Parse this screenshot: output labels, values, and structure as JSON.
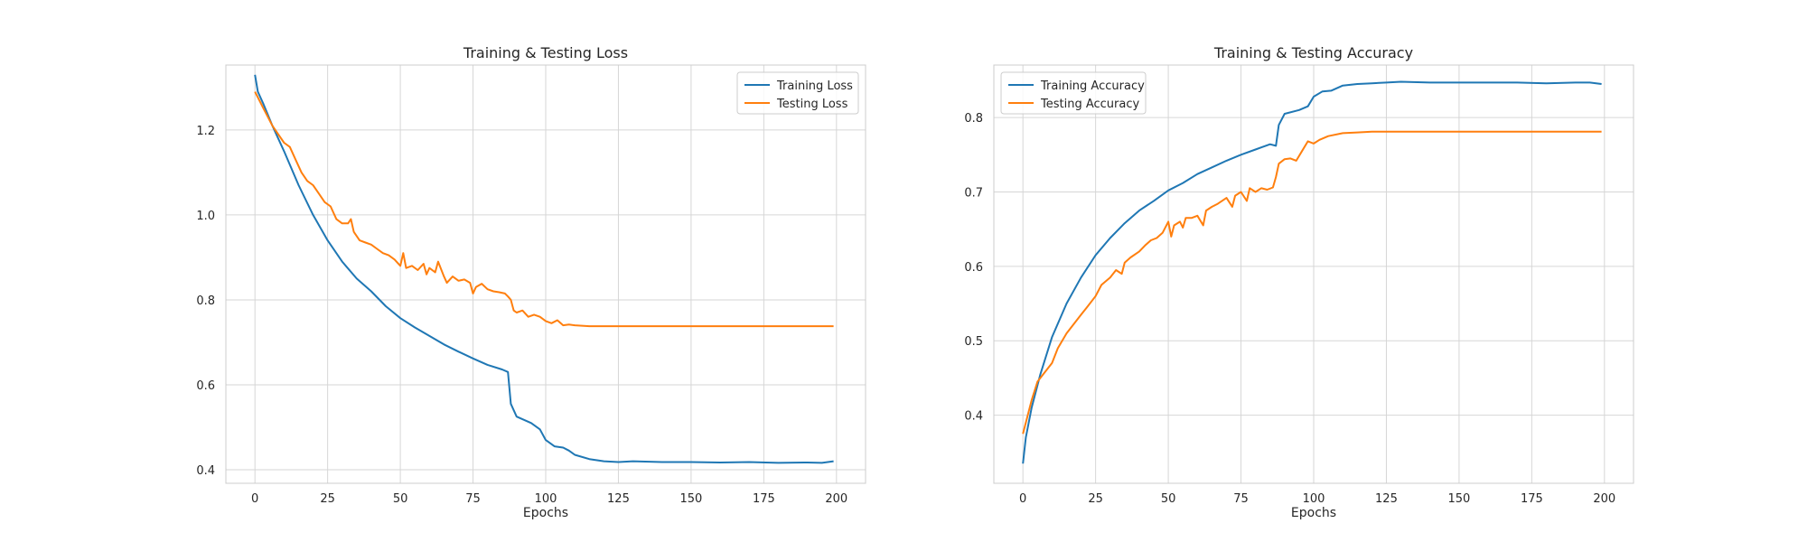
{
  "chart_data": [
    {
      "type": "line",
      "title": "Training & Testing Loss",
      "xlabel": "Epochs",
      "ylabel": "",
      "xlim": [
        -10,
        210
      ],
      "ylim": [
        0.368,
        1.353
      ],
      "xticks": [
        0,
        25,
        50,
        75,
        100,
        125,
        150,
        175,
        200
      ],
      "yticks": [
        0.4,
        0.6,
        0.8,
        1.0,
        1.2
      ],
      "ytick_labels": [
        "0.4",
        "0.6",
        "0.8",
        "1.0",
        "1.2"
      ],
      "grid": true,
      "legend_position": "top-right",
      "series": [
        {
          "name": "Training Loss",
          "color": "#1f77b4",
          "points": [
            [
              0,
              1.33
            ],
            [
              1,
              1.29
            ],
            [
              3,
              1.26
            ],
            [
              6,
              1.21
            ],
            [
              10,
              1.15
            ],
            [
              15,
              1.07
            ],
            [
              20,
              1.0
            ],
            [
              25,
              0.94
            ],
            [
              30,
              0.89
            ],
            [
              35,
              0.85
            ],
            [
              40,
              0.82
            ],
            [
              45,
              0.785
            ],
            [
              50,
              0.757
            ],
            [
              55,
              0.735
            ],
            [
              60,
              0.715
            ],
            [
              65,
              0.695
            ],
            [
              70,
              0.678
            ],
            [
              75,
              0.662
            ],
            [
              80,
              0.647
            ],
            [
              85,
              0.636
            ],
            [
              87,
              0.63
            ],
            [
              88,
              0.555
            ],
            [
              90,
              0.525
            ],
            [
              95,
              0.51
            ],
            [
              98,
              0.495
            ],
            [
              100,
              0.47
            ],
            [
              103,
              0.455
            ],
            [
              106,
              0.452
            ],
            [
              108,
              0.445
            ],
            [
              110,
              0.435
            ],
            [
              115,
              0.425
            ],
            [
              120,
              0.42
            ],
            [
              125,
              0.418
            ],
            [
              130,
              0.42
            ],
            [
              140,
              0.418
            ],
            [
              150,
              0.418
            ],
            [
              160,
              0.417
            ],
            [
              170,
              0.418
            ],
            [
              180,
              0.416
            ],
            [
              190,
              0.417
            ],
            [
              195,
              0.416
            ],
            [
              199,
              0.42
            ]
          ]
        },
        {
          "name": "Testing Loss",
          "color": "#ff7f0e",
          "points": [
            [
              0,
              1.29
            ],
            [
              3,
              1.25
            ],
            [
              6,
              1.21
            ],
            [
              8,
              1.19
            ],
            [
              10,
              1.17
            ],
            [
              12,
              1.16
            ],
            [
              14,
              1.13
            ],
            [
              16,
              1.1
            ],
            [
              18,
              1.08
            ],
            [
              20,
              1.07
            ],
            [
              22,
              1.05
            ],
            [
              24,
              1.03
            ],
            [
              26,
              1.02
            ],
            [
              28,
              0.99
            ],
            [
              30,
              0.98
            ],
            [
              32,
              0.98
            ],
            [
              33,
              0.99
            ],
            [
              34,
              0.96
            ],
            [
              36,
              0.94
            ],
            [
              38,
              0.935
            ],
            [
              40,
              0.93
            ],
            [
              42,
              0.92
            ],
            [
              44,
              0.91
            ],
            [
              46,
              0.905
            ],
            [
              48,
              0.895
            ],
            [
              50,
              0.88
            ],
            [
              51,
              0.91
            ],
            [
              52,
              0.875
            ],
            [
              54,
              0.88
            ],
            [
              56,
              0.87
            ],
            [
              58,
              0.885
            ],
            [
              59,
              0.86
            ],
            [
              60,
              0.875
            ],
            [
              62,
              0.865
            ],
            [
              63,
              0.89
            ],
            [
              65,
              0.855
            ],
            [
              66,
              0.84
            ],
            [
              68,
              0.855
            ],
            [
              70,
              0.845
            ],
            [
              72,
              0.848
            ],
            [
              74,
              0.84
            ],
            [
              75,
              0.815
            ],
            [
              76,
              0.83
            ],
            [
              78,
              0.838
            ],
            [
              80,
              0.825
            ],
            [
              82,
              0.82
            ],
            [
              84,
              0.818
            ],
            [
              86,
              0.815
            ],
            [
              87,
              0.808
            ],
            [
              88,
              0.8
            ],
            [
              89,
              0.775
            ],
            [
              90,
              0.77
            ],
            [
              92,
              0.775
            ],
            [
              94,
              0.76
            ],
            [
              96,
              0.765
            ],
            [
              98,
              0.76
            ],
            [
              100,
              0.75
            ],
            [
              102,
              0.745
            ],
            [
              104,
              0.752
            ],
            [
              106,
              0.74
            ],
            [
              108,
              0.742
            ],
            [
              110,
              0.74
            ],
            [
              115,
              0.738
            ],
            [
              120,
              0.738
            ],
            [
              130,
              0.738
            ],
            [
              140,
              0.738
            ],
            [
              150,
              0.738
            ],
            [
              160,
              0.738
            ],
            [
              170,
              0.738
            ],
            [
              180,
              0.738
            ],
            [
              190,
              0.738
            ],
            [
              199,
              0.738
            ]
          ]
        }
      ]
    },
    {
      "type": "line",
      "title": "Training & Testing Accuracy",
      "xlabel": "Epochs",
      "ylabel": "",
      "xlim": [
        -10,
        210
      ],
      "ylim": [
        0.3085,
        0.8705
      ],
      "xticks": [
        0,
        25,
        50,
        75,
        100,
        125,
        150,
        175,
        200
      ],
      "yticks": [
        0.4,
        0.5,
        0.6,
        0.7,
        0.8
      ],
      "ytick_labels": [
        "0.4",
        "0.5",
        "0.6",
        "0.7",
        "0.8"
      ],
      "grid": true,
      "legend_position": "top-left",
      "series": [
        {
          "name": "Training Accuracy",
          "color": "#1f77b4",
          "points": [
            [
              0,
              0.335
            ],
            [
              1,
              0.37
            ],
            [
              3,
              0.41
            ],
            [
              6,
              0.455
            ],
            [
              10,
              0.505
            ],
            [
              15,
              0.55
            ],
            [
              20,
              0.585
            ],
            [
              25,
              0.615
            ],
            [
              30,
              0.638
            ],
            [
              35,
              0.658
            ],
            [
              40,
              0.675
            ],
            [
              45,
              0.688
            ],
            [
              50,
              0.702
            ],
            [
              55,
              0.712
            ],
            [
              60,
              0.724
            ],
            [
              65,
              0.733
            ],
            [
              70,
              0.742
            ],
            [
              75,
              0.75
            ],
            [
              80,
              0.757
            ],
            [
              85,
              0.764
            ],
            [
              87,
              0.762
            ],
            [
              88,
              0.79
            ],
            [
              90,
              0.805
            ],
            [
              95,
              0.81
            ],
            [
              98,
              0.815
            ],
            [
              100,
              0.828
            ],
            [
              103,
              0.835
            ],
            [
              106,
              0.836
            ],
            [
              110,
              0.843
            ],
            [
              115,
              0.845
            ],
            [
              120,
              0.846
            ],
            [
              125,
              0.847
            ],
            [
              130,
              0.848
            ],
            [
              140,
              0.847
            ],
            [
              150,
              0.847
            ],
            [
              160,
              0.847
            ],
            [
              170,
              0.847
            ],
            [
              180,
              0.846
            ],
            [
              190,
              0.847
            ],
            [
              195,
              0.847
            ],
            [
              199,
              0.845
            ]
          ]
        },
        {
          "name": "Testing Accuracy",
          "color": "#ff7f0e",
          "points": [
            [
              0,
              0.375
            ],
            [
              1,
              0.39
            ],
            [
              3,
              0.42
            ],
            [
              5,
              0.445
            ],
            [
              7,
              0.455
            ],
            [
              10,
              0.47
            ],
            [
              12,
              0.49
            ],
            [
              15,
              0.51
            ],
            [
              18,
              0.525
            ],
            [
              20,
              0.535
            ],
            [
              22,
              0.545
            ],
            [
              25,
              0.56
            ],
            [
              27,
              0.575
            ],
            [
              30,
              0.585
            ],
            [
              32,
              0.595
            ],
            [
              34,
              0.59
            ],
            [
              35,
              0.605
            ],
            [
              37,
              0.612
            ],
            [
              40,
              0.62
            ],
            [
              42,
              0.628
            ],
            [
              44,
              0.635
            ],
            [
              46,
              0.638
            ],
            [
              48,
              0.645
            ],
            [
              50,
              0.66
            ],
            [
              51,
              0.64
            ],
            [
              52,
              0.655
            ],
            [
              54,
              0.66
            ],
            [
              55,
              0.652
            ],
            [
              56,
              0.665
            ],
            [
              58,
              0.665
            ],
            [
              60,
              0.668
            ],
            [
              62,
              0.655
            ],
            [
              63,
              0.675
            ],
            [
              65,
              0.68
            ],
            [
              67,
              0.684
            ],
            [
              70,
              0.692
            ],
            [
              72,
              0.68
            ],
            [
              73,
              0.695
            ],
            [
              75,
              0.7
            ],
            [
              77,
              0.688
            ],
            [
              78,
              0.705
            ],
            [
              80,
              0.7
            ],
            [
              82,
              0.705
            ],
            [
              84,
              0.703
            ],
            [
              86,
              0.706
            ],
            [
              87,
              0.72
            ],
            [
              88,
              0.738
            ],
            [
              90,
              0.744
            ],
            [
              92,
              0.745
            ],
            [
              94,
              0.742
            ],
            [
              96,
              0.755
            ],
            [
              98,
              0.768
            ],
            [
              100,
              0.765
            ],
            [
              102,
              0.77
            ],
            [
              105,
              0.775
            ],
            [
              110,
              0.779
            ],
            [
              115,
              0.78
            ],
            [
              120,
              0.781
            ],
            [
              130,
              0.781
            ],
            [
              140,
              0.781
            ],
            [
              150,
              0.781
            ],
            [
              160,
              0.781
            ],
            [
              170,
              0.781
            ],
            [
              180,
              0.781
            ],
            [
              190,
              0.781
            ],
            [
              199,
              0.781
            ]
          ]
        }
      ]
    }
  ]
}
